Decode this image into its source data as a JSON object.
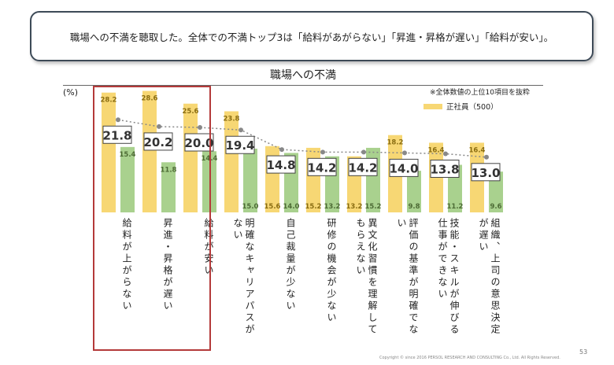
{
  "callout": "職場への不満を聴取した。全体での不満トップ3は「給料があがらない」「昇進・昇格が遅い」「給料が安い」。",
  "footer": {
    "copyright": "Copyright © since 2016 PERSOL RESEARCH AND CONSULTING Co., Ltd. All Rights Reserved.",
    "page": "53"
  },
  "chart_data": {
    "type": "bar",
    "title": "職場への不満",
    "ylabel": "(%)",
    "note": "※全体数値の上位10項目を抜粋",
    "ylim": [
      0,
      30
    ],
    "grid": false,
    "legend_placement": "top-right",
    "categories": [
      "給料が上がらない",
      "昇進・昇格が遅い",
      "給料が安い",
      "明確なキャリアパスがない",
      "自己裁量が少ない",
      "研修の機会が少ない",
      "異文化習慣を理解してもらえない",
      "評価の基準が明確でない",
      "技能・スキルが伸びる仕事ができない",
      "組織、上司の意思決定が遅い"
    ],
    "series": [
      {
        "name": "正社員（500）",
        "color": "#f7d774",
        "values": [
          28.2,
          28.6,
          25.6,
          23.8,
          15.6,
          15.2,
          13.2,
          18.2,
          16.4,
          16.4
        ]
      },
      {
        "color": "#a9d18e",
        "values": [
          15.4,
          11.8,
          14.4,
          15.0,
          14.0,
          13.2,
          15.2,
          9.8,
          11.2,
          9.6
        ]
      },
      {
        "type": "line",
        "color": "#888888",
        "values": [
          21.8,
          20.2,
          20.0,
          19.4,
          14.8,
          14.2,
          14.2,
          14.0,
          13.8,
          13.0
        ]
      }
    ]
  }
}
